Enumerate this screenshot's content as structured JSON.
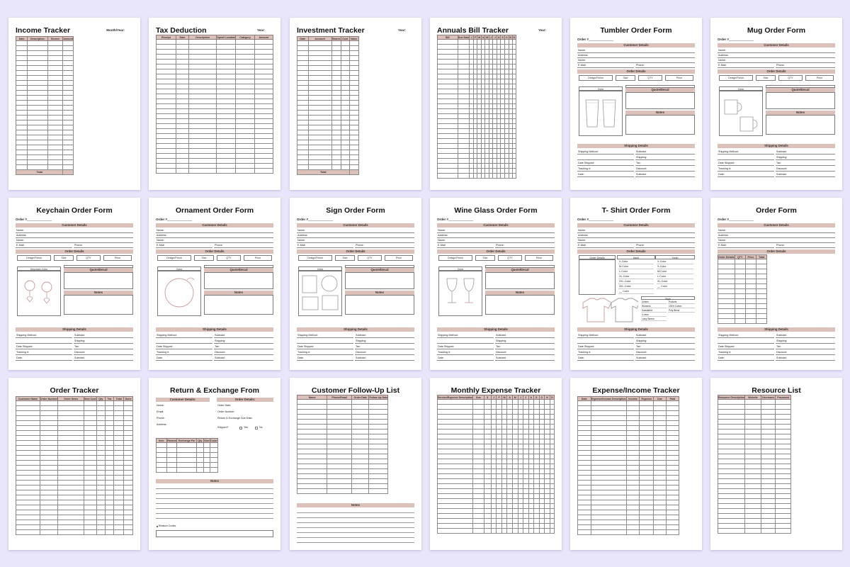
{
  "colors": {
    "background": "#e9e5fb",
    "accent": "#dcc0ba",
    "line": "#8a8a8a"
  },
  "row1": {
    "income": {
      "title": "Income Tracker",
      "meta": "Month/Year:",
      "cols": [
        "Date",
        "Description",
        "Source",
        "Amount"
      ],
      "total": "Total"
    },
    "tax": {
      "title": "Tax Deduction",
      "meta": "Year:",
      "cols": [
        "Receipt",
        "Date",
        "Description",
        "Spent Location",
        "Category",
        "Amount"
      ]
    },
    "investment": {
      "title": "Investment Tracker",
      "meta": "Year:",
      "cols": [
        "Date",
        "Account",
        "Shares",
        "Cost",
        "Value"
      ],
      "total": "Total"
    },
    "bills": {
      "title": "Annuals Bill Tracker",
      "meta": "Year:",
      "cols": [
        "Bill",
        "Due Date",
        "J",
        "F",
        "M",
        "A",
        "M",
        "J",
        "J",
        "A",
        "S",
        "O",
        "N",
        "D"
      ]
    },
    "tumbler": {
      "title": "Tumbler Order Form",
      "order": "Order #"
    },
    "mug": {
      "title": "Mug Order Form",
      "order": "Order #"
    }
  },
  "row2": {
    "keychain": {
      "title": "Keychain Order Form",
      "order": "Order #",
      "option": "Keychain Color"
    },
    "ornament": {
      "title": "Ornament Order Form",
      "order": "Order #"
    },
    "sign": {
      "title": "Sign Order Form",
      "order": "Order #"
    },
    "wineglass": {
      "title": "Wine Glass Order Form",
      "order": "Order #"
    },
    "tshirt": {
      "title": "T- Shirt Order Form",
      "order": "Order #",
      "details": "Order Details",
      "adult": "Adult",
      "youth": "Youth",
      "sizes": [
        "X-Color",
        "M-Color",
        "L-Color",
        "XL-Color",
        "2XL-Color",
        "3XL-Color",
        "__ Color"
      ],
      "youth_sizes": [
        "X-Color",
        "S-Color",
        "M-Color",
        "L-Color",
        "XL-Color",
        "__ Color"
      ],
      "style": "Style",
      "styles": [
        "Unisex",
        "Womens",
        "Sweatshirt",
        "V-neck",
        "Long Sleeve"
      ],
      "styles2": [
        "Pockets",
        "100% Cotton",
        "Poly Blend"
      ]
    },
    "order": {
      "title": "Order Form",
      "order": "Order #",
      "cols": [
        "Order Details",
        "QTY",
        "Price",
        "Total"
      ]
    }
  },
  "row3": {
    "tracker": {
      "title": "Order Tracker",
      "cols": [
        "Customer Name",
        "Order Number",
        "Order Items",
        "Item Cost",
        "Qty",
        "Tax",
        "Total",
        "Done"
      ]
    },
    "returns": {
      "title": "Return & Exchange From",
      "cust_label": "Customer Details:",
      "order_label": "Order Details:",
      "left_fields": [
        "Name:",
        "Email:",
        "Phone:",
        "Address:"
      ],
      "right_fields": [
        "Order Date:",
        "Order Number:",
        "Return & Exchange Due Date:"
      ],
      "shipped": "Shipped?",
      "yes": "Yes",
      "no": "No",
      "cols": [
        "Item",
        "Reason",
        "Exchange For",
        "Qty",
        "Size",
        "Color"
      ],
      "notes": "Notes",
      "reason_codes": "Reason Codes"
    },
    "followup": {
      "title": "Customer Follow-Up List",
      "cols": [
        "Name",
        "Phone/Email",
        "Order Date",
        "Follow Up Date"
      ],
      "notes": "Notes"
    },
    "monthly": {
      "title": "Monthly Expense Tracker",
      "cols": [
        "Service/Expense Description",
        "Due",
        "$",
        "J",
        "F",
        "M",
        "A",
        "M",
        "J",
        "J",
        "A",
        "S",
        "O",
        "N",
        "D"
      ]
    },
    "expinc": {
      "title": "Expense/Income Tracker",
      "cols": [
        "Date",
        "Expense/Income Description",
        "Income",
        "Expense",
        "Due",
        "Paid"
      ]
    },
    "resource": {
      "title": "Resource List",
      "cols": [
        "Resource Description",
        "Website",
        "Username",
        "Password"
      ]
    }
  },
  "common": {
    "customer_details": "Customer Details",
    "order_details": "Order Details",
    "shipping_details": "Shipping Details",
    "name": "Name:",
    "address": "Address:",
    "email": "E-Mail:",
    "phone": "Phone:",
    "design": "Design/Finish",
    "size": "Size",
    "qty": "QTY",
    "price": "Price",
    "color": "Color",
    "quote": "Quote/Decal",
    "notes": "Notes",
    "ship_left": [
      "Shipping Method:",
      "",
      "Date Shipped:",
      "Tracking #:",
      "Date:"
    ],
    "ship_right": [
      "Subtotal:",
      "Shipping:",
      "Tax:",
      "Discount:",
      "Subtotal:"
    ]
  }
}
